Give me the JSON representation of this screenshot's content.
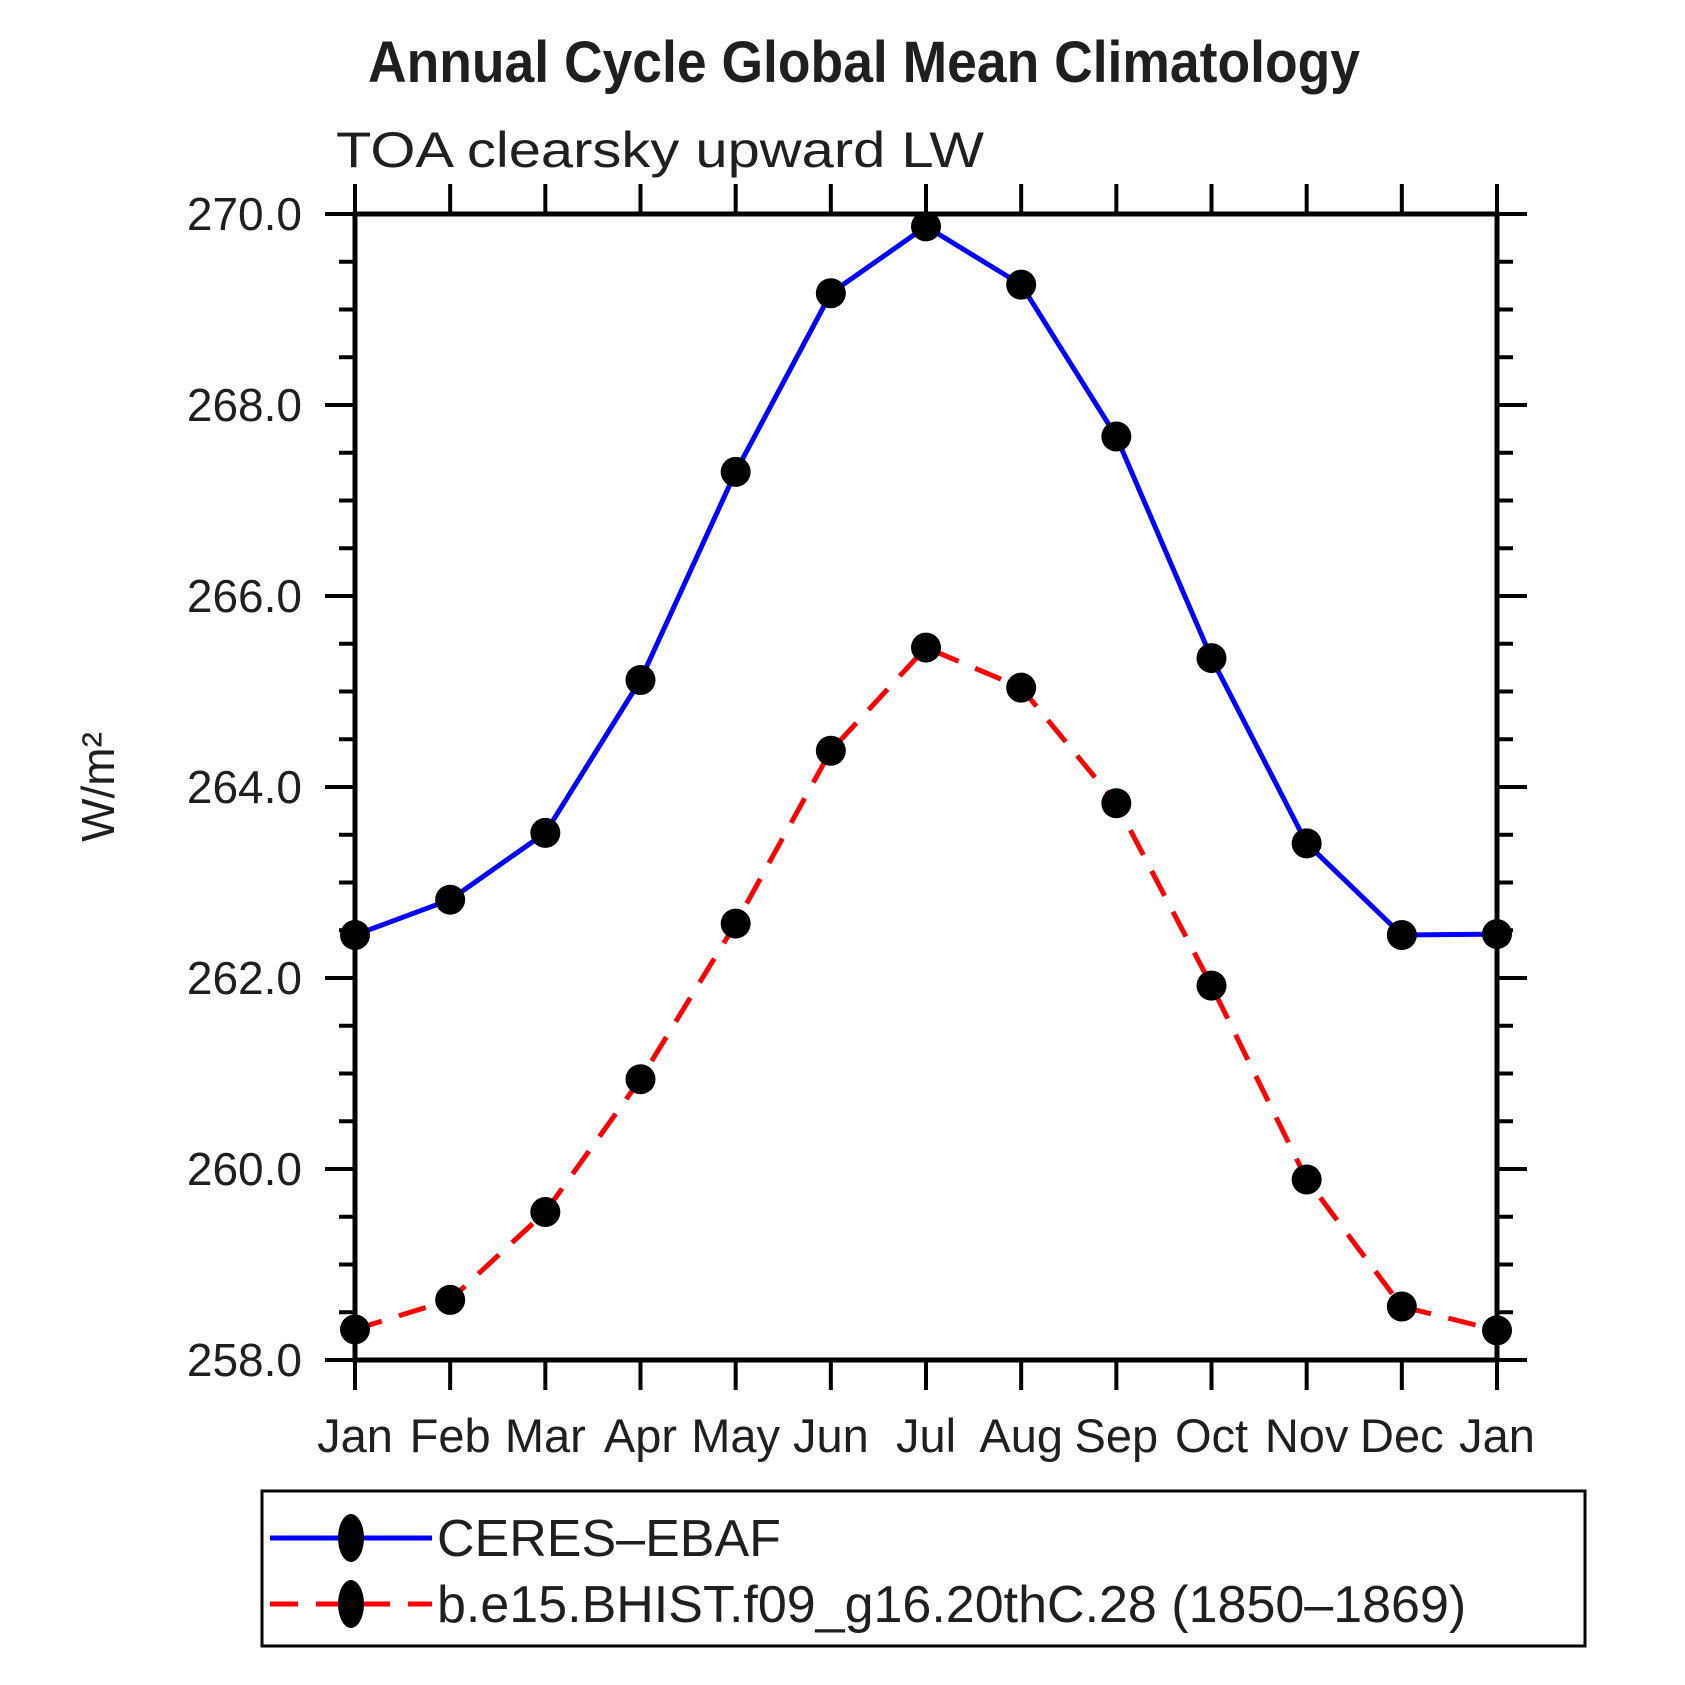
{
  "chart_data": {
    "type": "line",
    "title": "Annual Cycle Global Mean Climatology",
    "subtitle": "TOA clearsky upward LW",
    "ylabel": "W/m²",
    "xlabel": "",
    "categories": [
      "Jan",
      "Feb",
      "Mar",
      "Apr",
      "May",
      "Jun",
      "Jul",
      "Aug",
      "Sep",
      "Oct",
      "Nov",
      "Dec",
      "Jan"
    ],
    "series": [
      {
        "name": "CERES–EBAF",
        "color": "#0000ff",
        "style": "solid",
        "marker": "filled-circle",
        "marker_color": "#000000",
        "values": [
          262.45,
          262.82,
          263.52,
          265.12,
          267.3,
          269.17,
          269.87,
          269.26,
          267.67,
          265.35,
          263.41,
          262.45,
          262.46
        ]
      },
      {
        "name": "b.e15.BHIST.f09_g16.20thC.28 (1850–1869)",
        "color": "#ff0000",
        "style": "dashed",
        "marker": "filled-circle",
        "marker_color": "#000000",
        "values": [
          258.32,
          258.63,
          259.55,
          260.94,
          262.57,
          264.38,
          265.46,
          265.04,
          263.83,
          261.92,
          259.89,
          258.56,
          258.31
        ]
      }
    ],
    "ylim": [
      258.0,
      270.0
    ],
    "yticks_major": [
      258,
      260,
      262,
      264,
      266,
      268,
      270
    ],
    "ytick_labels": [
      "258.0",
      "260.0",
      "262.0",
      "264.0",
      "266.0",
      "268.0",
      "270.0"
    ],
    "ytick_minor_step": 0.5,
    "grid": false,
    "legend_position": "bottom",
    "axis_color": "#000000"
  }
}
